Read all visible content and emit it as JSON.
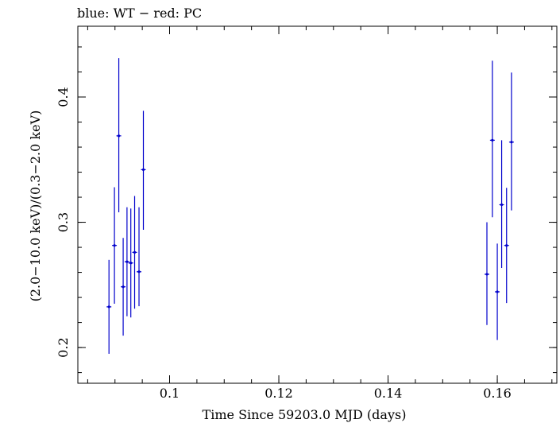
{
  "chart_data": {
    "type": "scatter",
    "title": "blue: WT − red: PC",
    "xlabel": "Time Since 59203.0 MJD (days)",
    "ylabel": "(2.0−10.0 keV)/(0.3−2.0 keV)",
    "xlim": [
      0.0832,
      0.1709
    ],
    "ylim": [
      0.1715,
      0.4565
    ],
    "x_ticks": [
      0.1,
      0.12,
      0.14,
      0.16
    ],
    "x_tick_labels": [
      "0.1",
      "0.12",
      "0.14",
      "0.16"
    ],
    "y_ticks": [
      0.2,
      0.3,
      0.4
    ],
    "y_tick_labels": [
      "0.2",
      "0.3",
      "0.4"
    ],
    "grid": false,
    "series": [
      {
        "color": "#0000cc",
        "x": [
          0.0889,
          0.0899,
          0.0907,
          0.0915,
          0.0922,
          0.0929,
          0.0936,
          0.0944,
          0.0952,
          0.1581,
          0.1591,
          0.16,
          0.1608,
          0.1617,
          0.1626
        ],
        "y": [
          0.2325,
          0.2815,
          0.369,
          0.2485,
          0.2685,
          0.2675,
          0.276,
          0.2605,
          0.342,
          0.2585,
          0.3655,
          0.2445,
          0.314,
          0.2815,
          0.364
        ],
        "yerr_low": [
          0.0375,
          0.0465,
          0.061,
          0.039,
          0.0435,
          0.0435,
          0.045,
          0.0275,
          0.048,
          0.0405,
          0.0615,
          0.0385,
          0.0505,
          0.046,
          0.0545
        ],
        "yerr_high": [
          0.0375,
          0.0465,
          0.062,
          0.039,
          0.0435,
          0.0435,
          0.045,
          0.0515,
          0.047,
          0.0415,
          0.0635,
          0.0385,
          0.0515,
          0.046,
          0.0555
        ]
      }
    ]
  }
}
